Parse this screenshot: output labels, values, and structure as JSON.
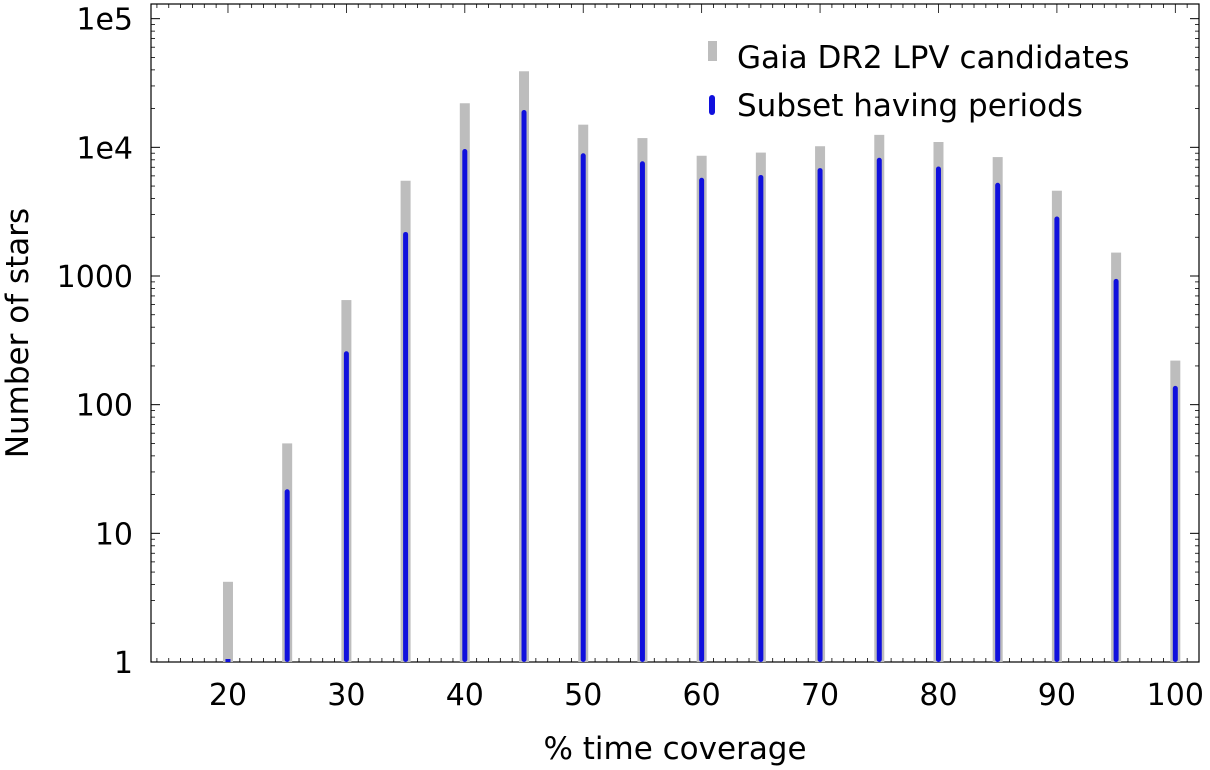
{
  "chart_data": {
    "type": "bar",
    "title": "",
    "xlabel": "% time coverage",
    "ylabel": "Number of stars",
    "yscale": "log",
    "xlim": [
      13.5,
      102
    ],
    "ylim": [
      1,
      130000
    ],
    "x_ticks": [
      20,
      30,
      40,
      50,
      60,
      70,
      80,
      90,
      100
    ],
    "y_ticks": [
      {
        "value": 1,
        "label": "1"
      },
      {
        "value": 10,
        "label": "10"
      },
      {
        "value": 100,
        "label": "100"
      },
      {
        "value": 1000,
        "label": "1000"
      },
      {
        "value": 10000,
        "label": "1e4"
      },
      {
        "value": 100000,
        "label": "1e5"
      }
    ],
    "legend_position": "top-right",
    "x": [
      20,
      25,
      30,
      35,
      40,
      45,
      50,
      55,
      60,
      65,
      70,
      75,
      80,
      85,
      90,
      95,
      100
    ],
    "series": [
      {
        "name": "Gaia DR2 LPV candidates",
        "color": "#bdbdbd",
        "values": [
          4.2,
          50,
          650,
          5500,
          22000,
          39000,
          15000,
          11800,
          8600,
          9100,
          10200,
          12500,
          11000,
          8400,
          4600,
          1520,
          220
        ]
      },
      {
        "name": "Subset having periods",
        "color": "#1010dd",
        "values": [
          1,
          22,
          260,
          2200,
          9700,
          19500,
          9000,
          7800,
          5800,
          6100,
          6900,
          8300,
          7100,
          5300,
          2900,
          950,
          140
        ]
      }
    ]
  }
}
